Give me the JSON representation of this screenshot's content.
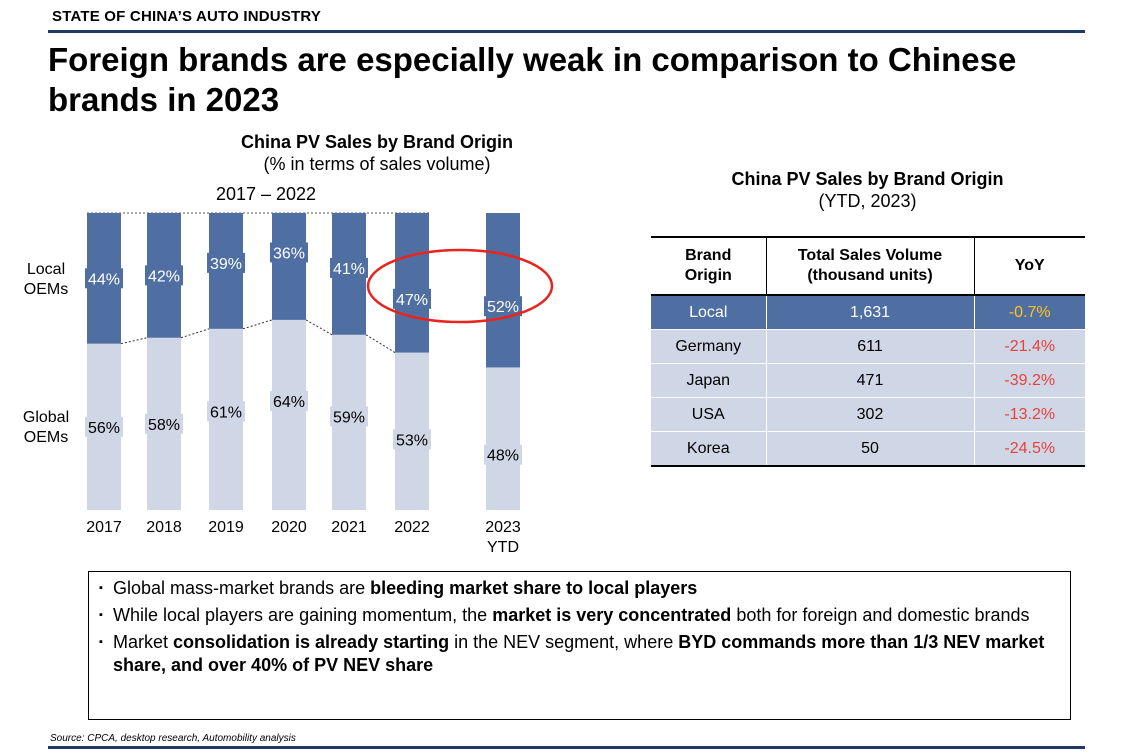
{
  "section_label": "STATE OF CHINA’S AUTO INDUSTRY",
  "headline": "Foreign brands are especially weak in comparison to Chinese brands in 2023",
  "chart": {
    "title": "China PV Sales by Brand Origin",
    "subtitle": "(% in terms of sales volume)",
    "period_label": "2017 – 2022"
  },
  "chart_data": {
    "type": "bar",
    "stacked": true,
    "title": "China PV Sales by Brand Origin",
    "subtitle": "(% in terms of sales volume)",
    "categories": [
      "2017",
      "2018",
      "2019",
      "2020",
      "2021",
      "2022",
      "2023\nYTD"
    ],
    "series": [
      {
        "name": "Global\nOEMs",
        "values": [
          56,
          58,
          61,
          64,
          59,
          53,
          48
        ]
      },
      {
        "name": "Local\nOEMs",
        "values": [
          44,
          42,
          39,
          36,
          41,
          47,
          52
        ]
      }
    ],
    "data_labels": {
      "Global": [
        "56%",
        "58%",
        "61%",
        "64%",
        "59%",
        "53%",
        "48%"
      ],
      "Local": [
        "44%",
        "42%",
        "39%",
        "36%",
        "41%",
        "47%",
        "52%"
      ]
    },
    "ylim": [
      0,
      100
    ],
    "colors": {
      "local": "#4f6fa3",
      "global": "#cfd6e6",
      "highlight_ellipse": "#e8241f"
    }
  },
  "table": {
    "title": "China PV Sales by Brand Origin",
    "subtitle": "(YTD, 2023)",
    "headers": [
      "Brand\nOrigin",
      "Total Sales Volume\n(thousand units)",
      "YoY"
    ],
    "rows": [
      {
        "origin": "Local",
        "volume": "1,631",
        "yoy": "-0.7%",
        "highlight": true
      },
      {
        "origin": "Germany",
        "volume": "611",
        "yoy": "-21.4%"
      },
      {
        "origin": "Japan",
        "volume": "471",
        "yoy": "-39.2%"
      },
      {
        "origin": "USA",
        "volume": "302",
        "yoy": "-13.2%"
      },
      {
        "origin": "Korea",
        "volume": "50",
        "yoy": "-24.5%"
      }
    ]
  },
  "bullets": [
    [
      {
        "text": "Global mass-market brands are "
      },
      {
        "text": "bleeding market share to local players",
        "bold": true
      }
    ],
    [
      {
        "text": "While local players are gaining momentum, the "
      },
      {
        "text": "market is very concentrated",
        "bold": true
      },
      {
        "text": " both for foreign and domestic brands"
      }
    ],
    [
      {
        "text": "Market "
      },
      {
        "text": "consolidation is already starting",
        "bold": true
      },
      {
        "text": " in the NEV segment, where "
      },
      {
        "text": "BYD commands more than 1/3 NEV market share, and over 40% of PV NEV share",
        "bold": true
      }
    ]
  ],
  "source": "Source: CPCA, desktop research, Automobility analysis"
}
